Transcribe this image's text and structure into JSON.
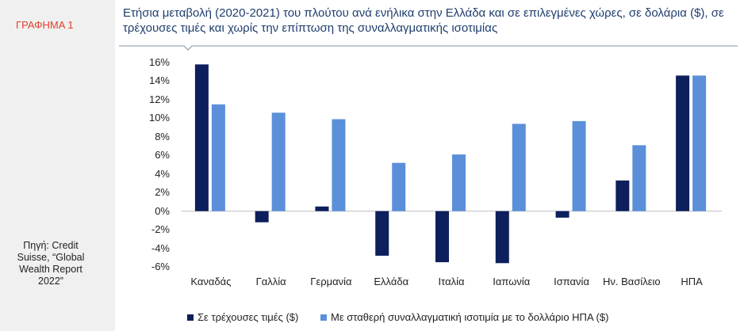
{
  "figure_label": "ΓΡΑΦΗΜΑ 1",
  "source": "Πηγή: Credit Suisse, “Global Wealth Report 2022”",
  "chart_data": {
    "type": "bar",
    "title": "Ετήσια μεταβολή (2020-2021) του πλούτου ανά ενήλικα στην Ελλάδα και σε επιλεγμένες χώρες, σε δολάρια ($), σε τρέχουσες τιμές και χωρίς την επίπτωση της συναλλαγματικής ισοτιμίας",
    "categories": [
      "Καναδάς",
      "Γαλλία",
      "Γερμανία",
      "Ελλάδα",
      "Ιταλία",
      "Ιαπωνία",
      "Ισπανία",
      "Ην. Βασίλειο",
      "ΗΠΑ"
    ],
    "series": [
      {
        "name": "Σε τρέχουσες τιμές ($)",
        "color": "#0d1f5c",
        "values": [
          15.8,
          -1.2,
          0.5,
          -4.8,
          -5.5,
          -5.6,
          -0.7,
          3.3,
          14.6
        ]
      },
      {
        "name": "Με σταθερή συναλλαγματική ισοτιμία με το δολλάριο ΗΠΑ ($)",
        "color": "#5b8fd9",
        "values": [
          11.5,
          10.6,
          9.9,
          5.2,
          6.1,
          9.4,
          9.7,
          7.1,
          14.6
        ]
      }
    ],
    "ylim": [
      -6,
      16
    ],
    "yticks": [
      {
        "value": -6,
        "label": "-6%"
      },
      {
        "value": -4,
        "label": "-4%"
      },
      {
        "value": -2,
        "label": "-2%"
      },
      {
        "value": 0,
        "label": "0%"
      },
      {
        "value": 2,
        "label": "2%"
      },
      {
        "value": 4,
        "label": "4%"
      },
      {
        "value": 6,
        "label": "6%"
      },
      {
        "value": 8,
        "label": "8%"
      },
      {
        "value": 10,
        "label": "10%"
      },
      {
        "value": 12,
        "label": "12%"
      },
      {
        "value": 14,
        "label": "14%"
      },
      {
        "value": 16,
        "label": "16%"
      }
    ],
    "grid": false,
    "legend": "bottom"
  }
}
